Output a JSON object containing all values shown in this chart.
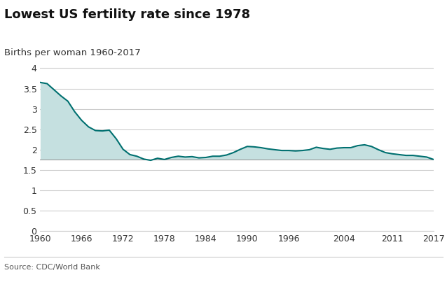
{
  "title": "Lowest US fertility rate since 1978",
  "subtitle": "Births per woman 1960-2017",
  "source": "Source: CDC/World Bank",
  "line_color": "#007070",
  "fill_color": "#c5e0e0",
  "reference_line": 1.765,
  "reference_line_color": "#999999",
  "background_color": "#ffffff",
  "grid_color": "#cccccc",
  "ylim": [
    0,
    4.15
  ],
  "yticks": [
    0,
    0.5,
    1,
    1.5,
    2,
    2.5,
    3,
    3.5,
    4
  ],
  "xticks": [
    1960,
    1966,
    1972,
    1978,
    1984,
    1990,
    1996,
    2004,
    2011,
    2017
  ],
  "xlim": [
    1960,
    2017
  ],
  "years": [
    1960,
    1961,
    1962,
    1963,
    1964,
    1965,
    1966,
    1967,
    1968,
    1969,
    1970,
    1971,
    1972,
    1973,
    1974,
    1975,
    1976,
    1977,
    1978,
    1979,
    1980,
    1981,
    1982,
    1983,
    1984,
    1985,
    1986,
    1987,
    1988,
    1989,
    1990,
    1991,
    1992,
    1993,
    1994,
    1995,
    1996,
    1997,
    1998,
    1999,
    2000,
    2001,
    2002,
    2003,
    2004,
    2005,
    2006,
    2007,
    2008,
    2009,
    2010,
    2011,
    2012,
    2013,
    2014,
    2015,
    2016,
    2017
  ],
  "values": [
    3.65,
    3.62,
    3.47,
    3.32,
    3.19,
    2.93,
    2.72,
    2.56,
    2.47,
    2.46,
    2.48,
    2.27,
    2.01,
    1.88,
    1.84,
    1.77,
    1.74,
    1.79,
    1.76,
    1.81,
    1.84,
    1.82,
    1.83,
    1.8,
    1.81,
    1.84,
    1.84,
    1.87,
    1.93,
    2.01,
    2.08,
    2.07,
    2.05,
    2.02,
    2.0,
    1.98,
    1.98,
    1.97,
    1.98,
    2.0,
    2.06,
    2.03,
    2.01,
    2.04,
    2.05,
    2.05,
    2.1,
    2.12,
    2.08,
    2.0,
    1.93,
    1.9,
    1.88,
    1.86,
    1.86,
    1.84,
    1.82,
    1.76
  ]
}
